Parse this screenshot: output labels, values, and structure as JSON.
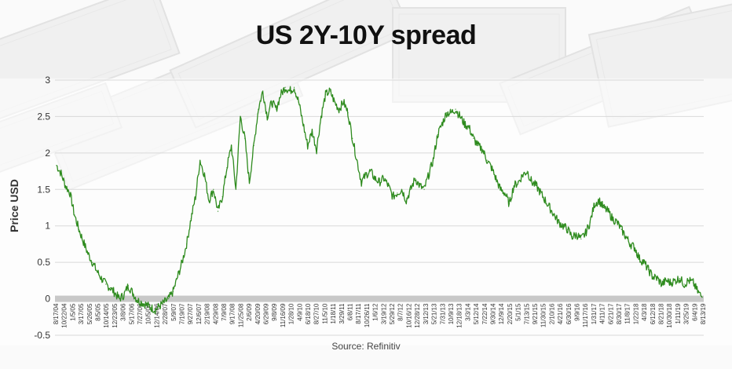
{
  "chart_data": {
    "type": "line",
    "title": "US 2Y-10Y spread",
    "xlabel": "",
    "ylabel": "Price USD",
    "source": "Source: Refinitiv",
    "ylim": [
      -0.5,
      3
    ],
    "yticks": [
      3,
      2.5,
      2,
      1.5,
      1,
      0.5,
      0,
      -0.5
    ],
    "ytick_labels": [
      "3",
      "2.5",
      "2",
      "1.5",
      "1",
      "0.5",
      "0",
      "-0.5"
    ],
    "grid": true,
    "legend": "none",
    "colors": {
      "line": "#2e8b1e",
      "zero_band": "#c8c8c8",
      "grid": "#d9d9d9"
    },
    "x_tick_labels": [
      "8/17/04",
      "10/22/04",
      "1/5/05",
      "3/17/05",
      "5/26/05",
      "8/5/05",
      "10/14/05",
      "12/23/05",
      "3/8/06",
      "5/17/06",
      "7/27/06",
      "10/5/06",
      "12/14/06",
      "2/28/07",
      "5/9/07",
      "7/19/07",
      "9/27/07",
      "12/6/07",
      "2/19/08",
      "4/29/08",
      "7/9/08",
      "9/17/08",
      "11/25/08",
      "2/6/09",
      "4/20/09",
      "6/29/09",
      "9/8/09",
      "11/16/09",
      "1/28/10",
      "4/9/10",
      "6/18/10",
      "8/27/10",
      "11/5/10",
      "1/18/11",
      "3/29/11",
      "6/8/11",
      "8/17/11",
      "10/26/11",
      "1/6/12",
      "3/19/12",
      "5/29/12",
      "8/7/12",
      "10/16/12",
      "12/28/12",
      "3/12/13",
      "5/21/13",
      "7/31/13",
      "10/9/13",
      "12/18/13",
      "3/3/14",
      "5/12/14",
      "7/22/14",
      "9/30/14",
      "12/9/14",
      "2/20/15",
      "5/1/15",
      "7/13/15",
      "9/21/15",
      "11/30/15",
      "2/10/16",
      "4/21/16",
      "6/30/16",
      "9/9/16",
      "11/17/16",
      "1/31/17",
      "4/11/17",
      "6/21/17",
      "8/30/17",
      "11/8/17",
      "1/22/18",
      "4/3/18",
      "6/12/18",
      "8/21/18",
      "10/30/18",
      "1/11/19",
      "3/25/19",
      "6/4/19",
      "8/13/19"
    ],
    "series": [
      {
        "values": [
          1.83,
          1.72,
          1.55,
          1.45,
          1.15,
          0.95,
          0.78,
          0.62,
          0.5,
          0.38,
          0.28,
          0.2,
          0.15,
          0.08,
          0.0,
          0.05,
          0.18,
          0.08,
          -0.02,
          -0.05,
          -0.08,
          -0.12,
          -0.15,
          -0.1,
          -0.05,
          0.0,
          0.1,
          0.3,
          0.5,
          0.75,
          1.1,
          1.4,
          1.9,
          1.7,
          1.35,
          1.5,
          1.2,
          1.4,
          1.8,
          2.1,
          1.5,
          2.5,
          2.2,
          1.6,
          2.1,
          2.6,
          2.85,
          2.5,
          2.7,
          2.6,
          2.8,
          2.9,
          2.85,
          2.9,
          2.7,
          2.4,
          2.1,
          2.3,
          2.05,
          2.5,
          2.8,
          2.85,
          2.7,
          2.6,
          2.7,
          2.55,
          2.2,
          1.9,
          1.6,
          1.7,
          1.75,
          1.65,
          1.6,
          1.65,
          1.55,
          1.4,
          1.45,
          1.5,
          1.35,
          1.5,
          1.65,
          1.55,
          1.5,
          1.7,
          1.9,
          2.25,
          2.4,
          2.55,
          2.55,
          2.6,
          2.5,
          2.4,
          2.35,
          2.2,
          2.1,
          2.05,
          1.9,
          1.8,
          1.65,
          1.5,
          1.45,
          1.3,
          1.55,
          1.6,
          1.7,
          1.75,
          1.6,
          1.55,
          1.45,
          1.35,
          1.25,
          1.15,
          1.05,
          1.0,
          0.95,
          0.85,
          0.88,
          0.82,
          0.9,
          1.05,
          1.3,
          1.35,
          1.25,
          1.2,
          1.1,
          1.05,
          0.95,
          0.85,
          0.75,
          0.7,
          0.55,
          0.5,
          0.4,
          0.3,
          0.28,
          0.2,
          0.25,
          0.22,
          0.25,
          0.28,
          0.2,
          0.25,
          0.22,
          0.1,
          0.02
        ]
      }
    ]
  }
}
